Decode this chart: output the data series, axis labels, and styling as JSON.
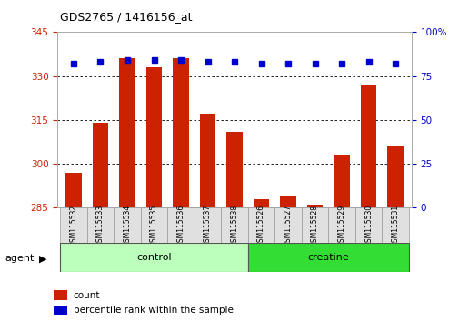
{
  "title": "GDS2765 / 1416156_at",
  "samples": [
    "GSM115532",
    "GSM115533",
    "GSM115534",
    "GSM115535",
    "GSM115536",
    "GSM115537",
    "GSM115538",
    "GSM115526",
    "GSM115527",
    "GSM115528",
    "GSM115529",
    "GSM115530",
    "GSM115531"
  ],
  "counts": [
    297,
    314,
    336,
    333,
    336,
    317,
    311,
    288,
    289,
    286,
    303,
    327,
    306
  ],
  "percentiles": [
    82,
    83,
    84,
    84,
    84,
    83,
    83,
    82,
    82,
    82,
    82,
    83,
    82
  ],
  "groups": [
    "control",
    "control",
    "control",
    "control",
    "control",
    "control",
    "control",
    "creatine",
    "creatine",
    "creatine",
    "creatine",
    "creatine",
    "creatine"
  ],
  "ylim_left": [
    285,
    345
  ],
  "ylim_right": [
    0,
    100
  ],
  "yticks_left": [
    285,
    300,
    315,
    330,
    345
  ],
  "yticks_right": [
    0,
    25,
    50,
    75,
    100
  ],
  "ytick_right_labels": [
    "0",
    "25",
    "50",
    "75",
    "100%"
  ],
  "bar_color": "#cc2200",
  "dot_color": "#0000cc",
  "control_color": "#bbffbb",
  "creatine_color": "#33dd33",
  "tick_label_color_left": "#cc2200",
  "tick_label_color_right": "#0000cc",
  "bar_bottom": 285,
  "group_label_control": "control",
  "group_label_creatine": "creatine",
  "agent_label": "agent",
  "legend_count": "count",
  "legend_percentile": "percentile rank within the sample",
  "bg_color": "#ffffff",
  "plot_bg_color": "#ffffff",
  "grid_color": "#000000",
  "n_control": 7,
  "n_creatine": 6
}
